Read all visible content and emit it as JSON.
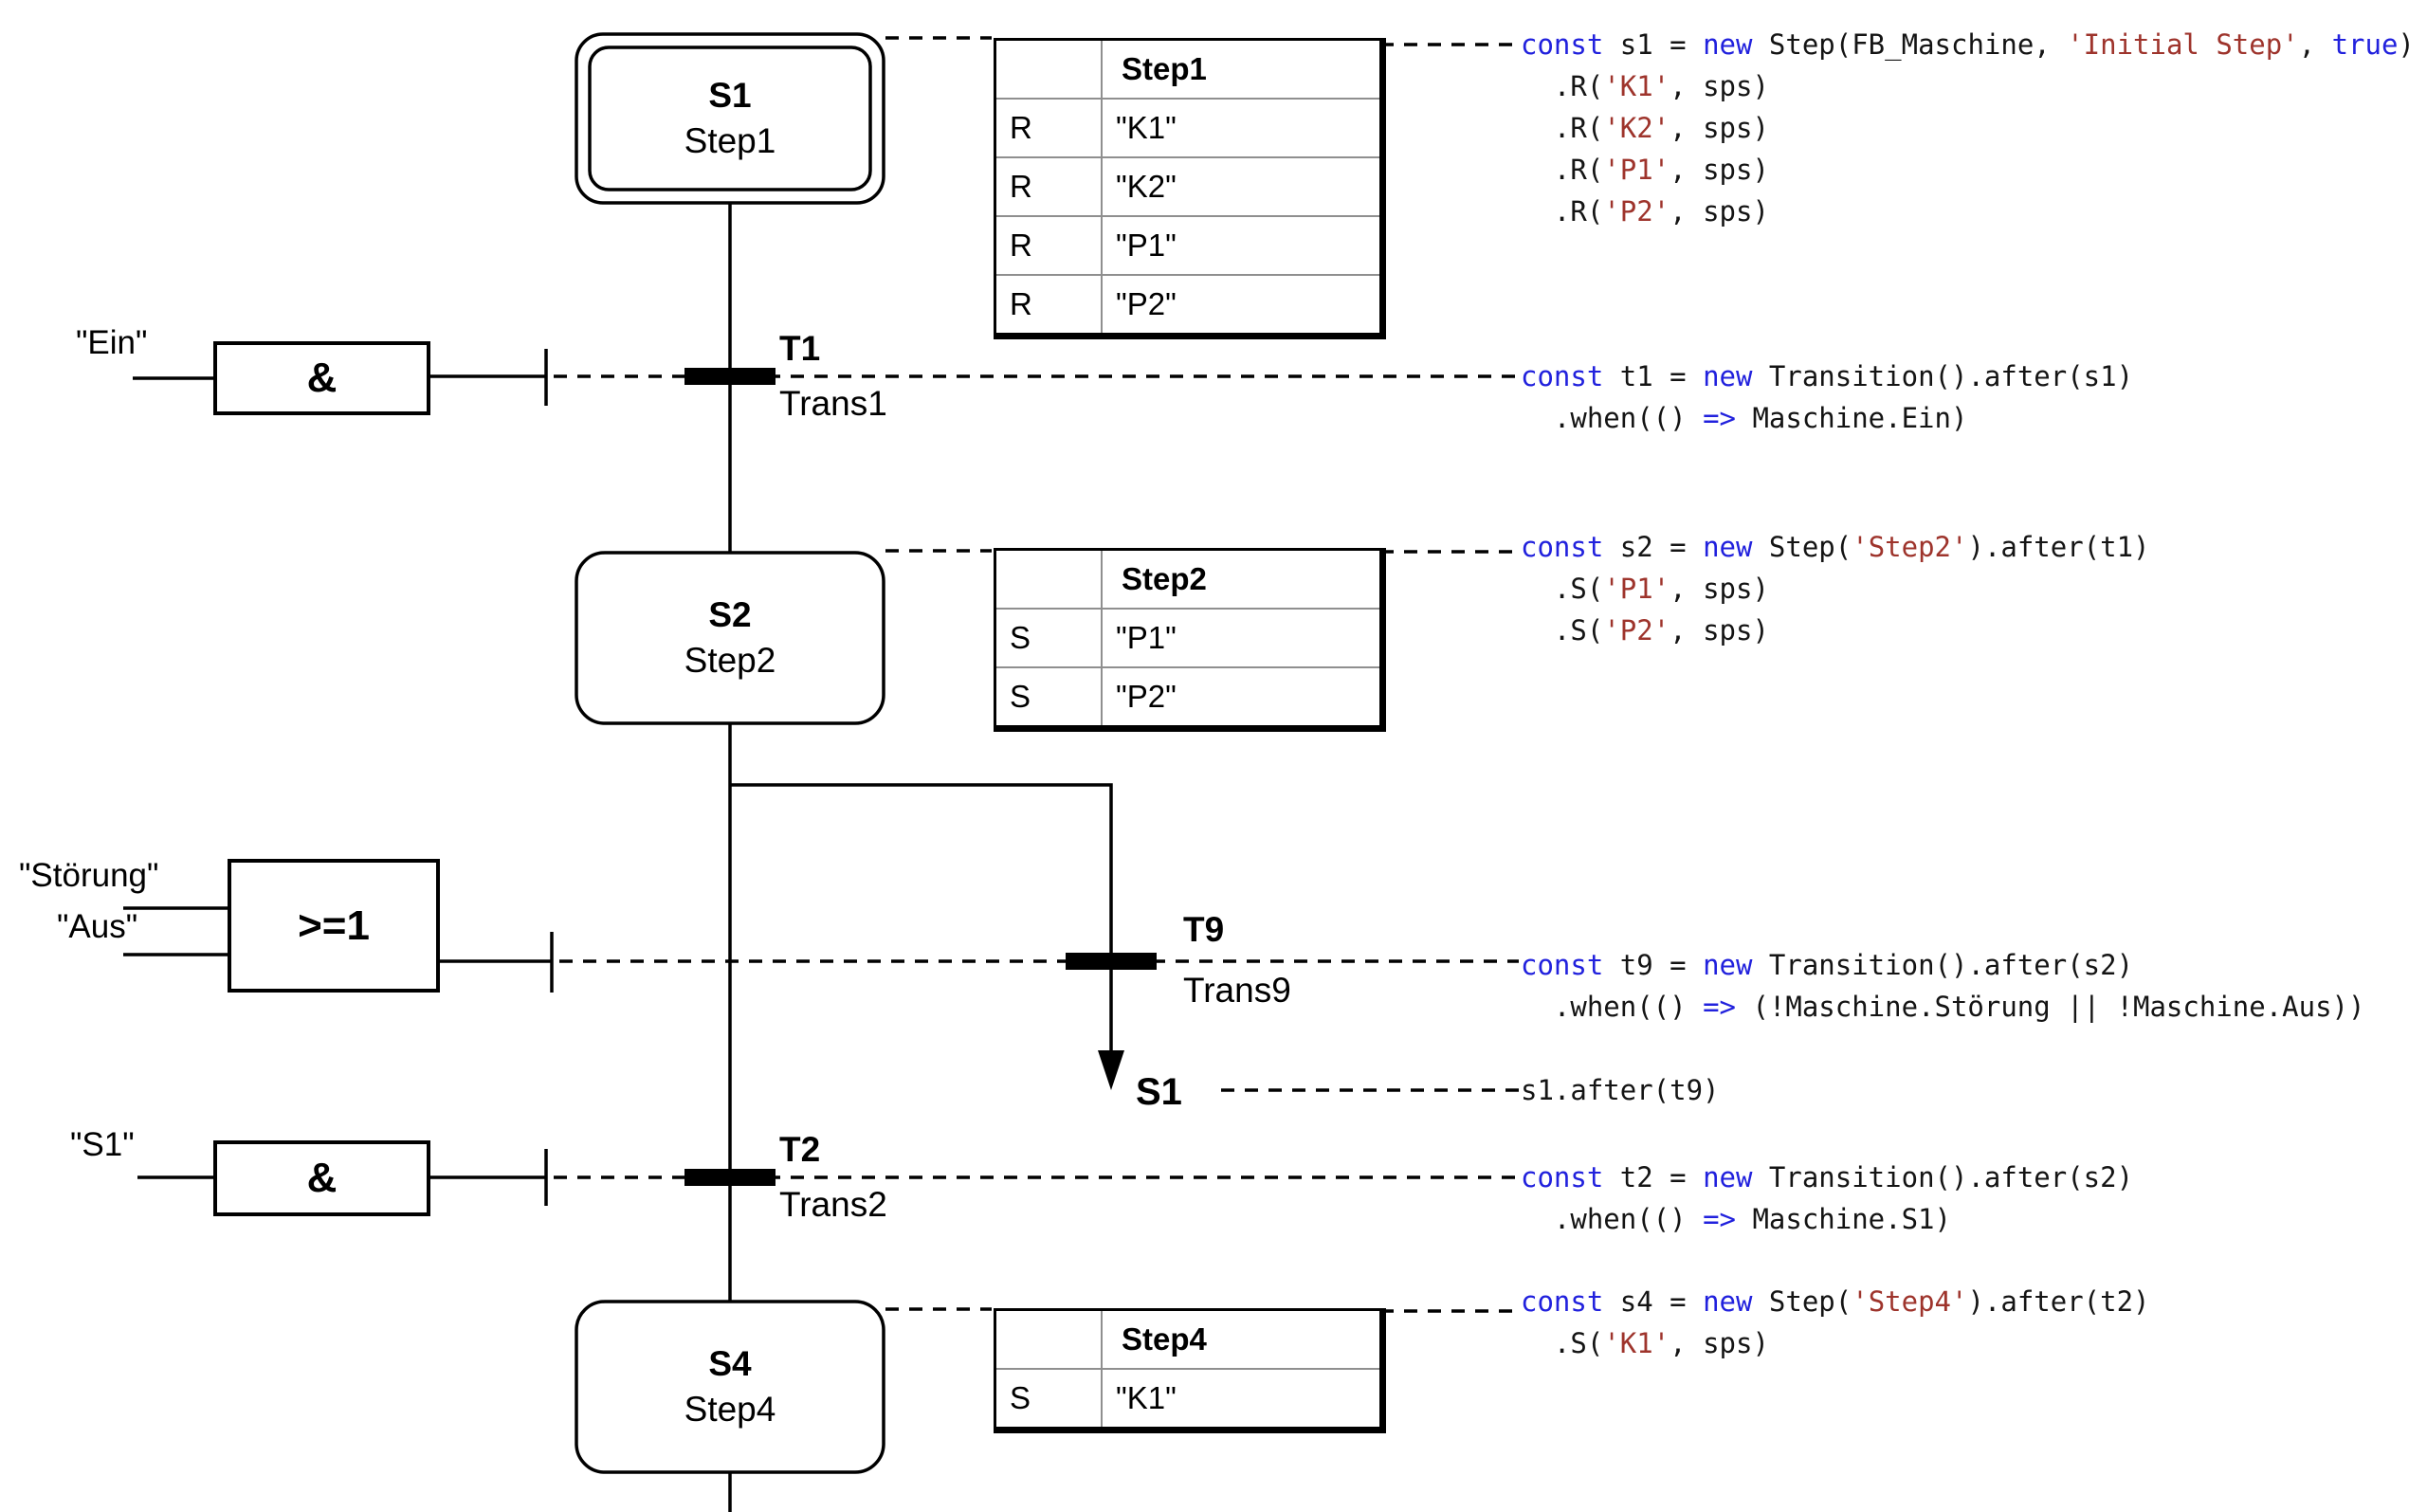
{
  "diagram": {
    "steps": [
      {
        "id": "S1",
        "name": "Step1",
        "initial": true
      },
      {
        "id": "S2",
        "name": "Step2",
        "initial": false
      },
      {
        "id": "S4",
        "name": "Step4",
        "initial": false
      }
    ],
    "transitions": [
      {
        "id": "T1",
        "name": "Trans1"
      },
      {
        "id": "T9",
        "name": "Trans9"
      },
      {
        "id": "T2",
        "name": "Trans2"
      }
    ],
    "jump_target": "S1",
    "gates": [
      {
        "label": "&",
        "inputs": [
          "\"Ein\""
        ]
      },
      {
        "label": ">=1",
        "inputs": [
          "\"Störung\"",
          "\"Aus\""
        ]
      },
      {
        "label": "&",
        "inputs": [
          "\"S1\""
        ]
      }
    ],
    "tables": [
      {
        "title": "Step1",
        "rows": [
          [
            "R",
            "\"K1\""
          ],
          [
            "R",
            "\"K2\""
          ],
          [
            "R",
            "\"P1\""
          ],
          [
            "R",
            "\"P2\""
          ]
        ]
      },
      {
        "title": "Step2",
        "rows": [
          [
            "S",
            "\"P1\""
          ],
          [
            "S",
            "\"P2\""
          ]
        ]
      },
      {
        "title": "Step4",
        "rows": [
          [
            "S",
            "\"K1\""
          ]
        ]
      }
    ]
  },
  "colors": {
    "line": "#000000",
    "keyword": "#2121dd",
    "string": "#9e342c",
    "code_text": "#141414",
    "table_grid": "#8f8f8f"
  },
  "code_blocks": [
    {
      "id": "s1",
      "lines": [
        [
          {
            "c": "kw",
            "t": "const"
          },
          {
            "c": "pl",
            "t": " s1 = "
          },
          {
            "c": "kw",
            "t": "new"
          },
          {
            "c": "pl",
            "t": " Step(FB_Maschine, "
          },
          {
            "c": "str",
            "t": "'Initial Step'"
          },
          {
            "c": "pl",
            "t": ", "
          },
          {
            "c": "kw",
            "t": "true"
          },
          {
            "c": "pl",
            "t": ")"
          }
        ],
        [
          {
            "c": "pl",
            "t": "  .R("
          },
          {
            "c": "str",
            "t": "'K1'"
          },
          {
            "c": "pl",
            "t": ", sps)"
          }
        ],
        [
          {
            "c": "pl",
            "t": "  .R("
          },
          {
            "c": "str",
            "t": "'K2'"
          },
          {
            "c": "pl",
            "t": ", sps)"
          }
        ],
        [
          {
            "c": "pl",
            "t": "  .R("
          },
          {
            "c": "str",
            "t": "'P1'"
          },
          {
            "c": "pl",
            "t": ", sps)"
          }
        ],
        [
          {
            "c": "pl",
            "t": "  .R("
          },
          {
            "c": "str",
            "t": "'P2'"
          },
          {
            "c": "pl",
            "t": ", sps)"
          }
        ]
      ]
    },
    {
      "id": "t1",
      "lines": [
        [
          {
            "c": "kw",
            "t": "const"
          },
          {
            "c": "pl",
            "t": " t1 = "
          },
          {
            "c": "kw",
            "t": "new"
          },
          {
            "c": "pl",
            "t": " Transition().after(s1)"
          }
        ],
        [
          {
            "c": "pl",
            "t": "  .when(() "
          },
          {
            "c": "kw",
            "t": "=>"
          },
          {
            "c": "pl",
            "t": " Maschine.Ein)"
          }
        ]
      ]
    },
    {
      "id": "s2",
      "lines": [
        [
          {
            "c": "kw",
            "t": "const"
          },
          {
            "c": "pl",
            "t": " s2 = "
          },
          {
            "c": "kw",
            "t": "new"
          },
          {
            "c": "pl",
            "t": " Step("
          },
          {
            "c": "str",
            "t": "'Step2'"
          },
          {
            "c": "pl",
            "t": ").after(t1)"
          }
        ],
        [
          {
            "c": "pl",
            "t": "  .S("
          },
          {
            "c": "str",
            "t": "'P1'"
          },
          {
            "c": "pl",
            "t": ", sps)"
          }
        ],
        [
          {
            "c": "pl",
            "t": "  .S("
          },
          {
            "c": "str",
            "t": "'P2'"
          },
          {
            "c": "pl",
            "t": ", sps)"
          }
        ]
      ]
    },
    {
      "id": "t9",
      "lines": [
        [
          {
            "c": "kw",
            "t": "const"
          },
          {
            "c": "pl",
            "t": " t9 = "
          },
          {
            "c": "kw",
            "t": "new"
          },
          {
            "c": "pl",
            "t": " Transition().after(s2)"
          }
        ],
        [
          {
            "c": "pl",
            "t": "  .when(() "
          },
          {
            "c": "kw",
            "t": "=>"
          },
          {
            "c": "pl",
            "t": " (!Maschine.Störung || !Maschine.Aus))"
          }
        ]
      ]
    },
    {
      "id": "jump",
      "lines": [
        [
          {
            "c": "pl",
            "t": "s1.after(t9)"
          }
        ]
      ]
    },
    {
      "id": "t2",
      "lines": [
        [
          {
            "c": "kw",
            "t": "const"
          },
          {
            "c": "pl",
            "t": " t2 = "
          },
          {
            "c": "kw",
            "t": "new"
          },
          {
            "c": "pl",
            "t": " Transition().after(s2)"
          }
        ],
        [
          {
            "c": "pl",
            "t": "  .when(() "
          },
          {
            "c": "kw",
            "t": "=>"
          },
          {
            "c": "pl",
            "t": " Maschine.S1)"
          }
        ]
      ]
    },
    {
      "id": "s4",
      "lines": [
        [
          {
            "c": "kw",
            "t": "const"
          },
          {
            "c": "pl",
            "t": " s4 = "
          },
          {
            "c": "kw",
            "t": "new"
          },
          {
            "c": "pl",
            "t": " Step("
          },
          {
            "c": "str",
            "t": "'Step4'"
          },
          {
            "c": "pl",
            "t": ").after(t2)"
          }
        ],
        [
          {
            "c": "pl",
            "t": "  .S("
          },
          {
            "c": "str",
            "t": "'K1'"
          },
          {
            "c": "pl",
            "t": ", sps)"
          }
        ]
      ]
    }
  ]
}
